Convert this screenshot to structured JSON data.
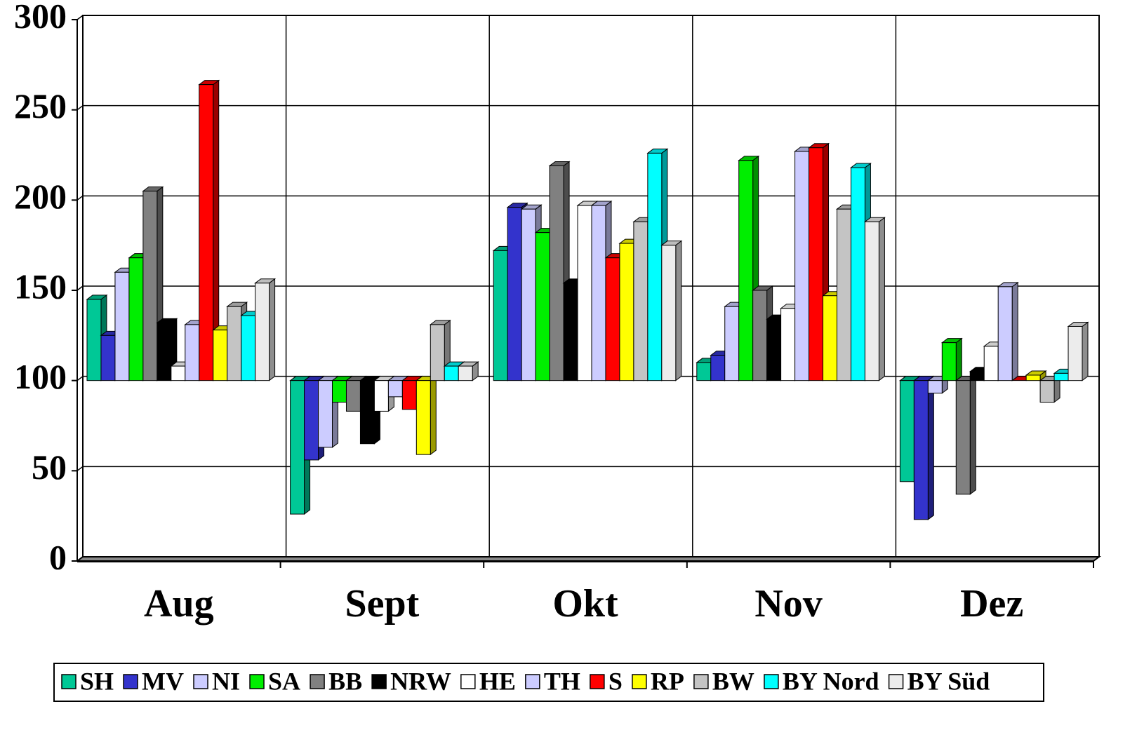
{
  "chart_data": {
    "type": "bar",
    "categories": [
      "Aug",
      "Sept",
      "Okt",
      "Nov",
      "Dez"
    ],
    "baseline": 100,
    "ylim": [
      0,
      300
    ],
    "yticks": [
      0,
      50,
      100,
      150,
      200,
      250,
      300
    ],
    "grid": true,
    "legend": "bottom",
    "series": [
      {
        "name": "SH",
        "color": "#00c896",
        "values": [
          145,
          26,
          172,
          110,
          44
        ]
      },
      {
        "name": "MV",
        "color": "#3333cc",
        "values": [
          125,
          56,
          196,
          114,
          23
        ]
      },
      {
        "name": "NI",
        "color": "#ccccff",
        "values": [
          160,
          63,
          195,
          141,
          93
        ]
      },
      {
        "name": "SA",
        "color": "#00ee00",
        "values": [
          168,
          88,
          182,
          222,
          121
        ]
      },
      {
        "name": "BB",
        "color": "#808080",
        "values": [
          205,
          83,
          219,
          150,
          37
        ]
      },
      {
        "name": "NRW",
        "color": "#000000",
        "values": [
          132,
          65,
          154,
          134,
          105
        ]
      },
      {
        "name": "HE",
        "color": "#ffffff",
        "values": [
          108,
          83,
          197,
          140,
          119
        ]
      },
      {
        "name": "TH",
        "color": "#ccccff",
        "values": [
          131,
          91,
          197,
          227,
          152
        ]
      },
      {
        "name": "S",
        "color": "#ff0000",
        "values": [
          264,
          84,
          168,
          229,
          100
        ]
      },
      {
        "name": "RP",
        "color": "#ffff00",
        "values": [
          128,
          59,
          176,
          147,
          103
        ]
      },
      {
        "name": "BW",
        "color": "#c4c4c4",
        "values": [
          141,
          131,
          188,
          195,
          88
        ]
      },
      {
        "name": "BY Nord",
        "color": "#00ffff",
        "values": [
          136,
          108,
          226,
          218,
          104
        ]
      },
      {
        "name": "BY Süd",
        "color": "#ececec",
        "values": [
          154,
          108,
          175,
          188,
          130
        ]
      }
    ]
  }
}
